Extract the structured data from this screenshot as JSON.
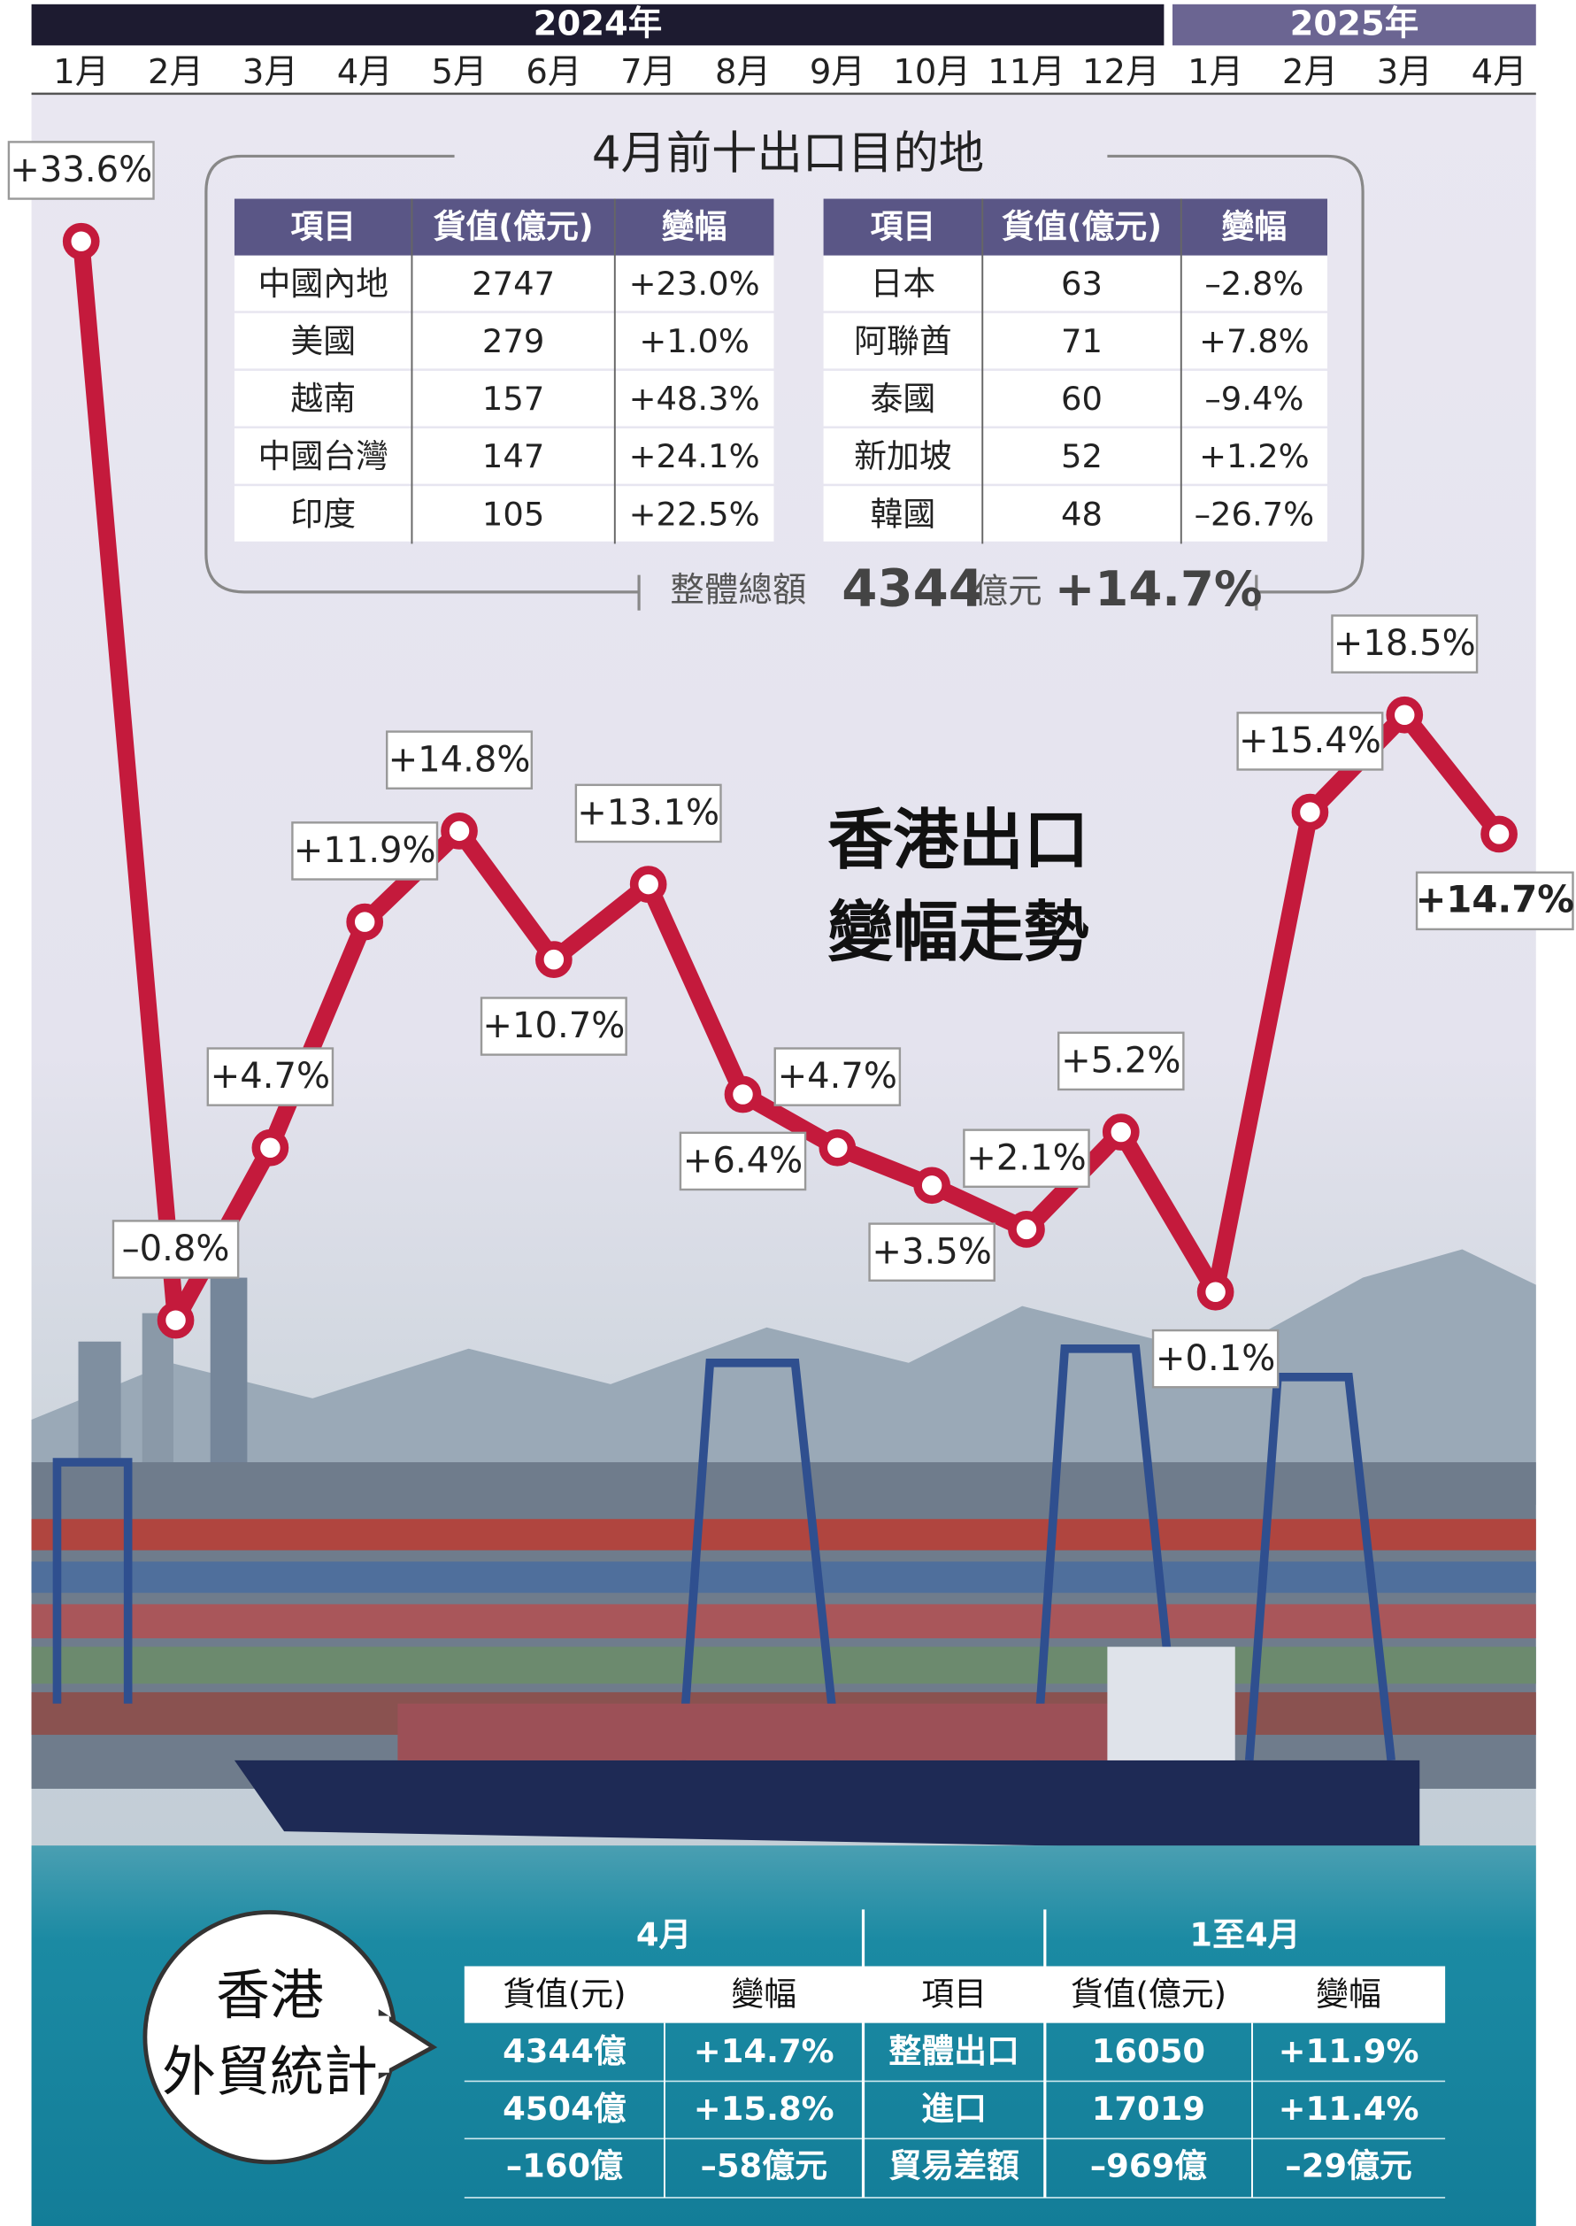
{
  "chart_data": {
    "type": "line",
    "title": [
      "香港出口",
      "變幅走勢"
    ],
    "year_labels": [
      "2024年",
      "2025年"
    ],
    "categories": [
      "1月",
      "2月",
      "3月",
      "4月",
      "5月",
      "6月",
      "7月",
      "8月",
      "9月",
      "10月",
      "11月",
      "12月",
      "1月",
      "2月",
      "3月",
      "4月"
    ],
    "values": [
      33.6,
      -0.8,
      4.7,
      11.9,
      14.8,
      10.7,
      13.1,
      6.4,
      4.7,
      3.5,
      2.1,
      5.2,
      0.1,
      15.4,
      18.5,
      14.7
    ],
    "value_labels": [
      "+33.6%",
      "–0.8%",
      "+4.7%",
      "+11.9%",
      "+14.8%",
      "+10.7%",
      "+13.1%",
      "+6.4%",
      "+4.7%",
      "+3.5%",
      "+2.1%",
      "+5.2%",
      "+0.1%",
      "+15.4%",
      "+18.5%",
      "+14.7%"
    ],
    "color": "#c41a3c"
  },
  "destinations": {
    "title": "4月前十出口目的地",
    "columns": [
      "項目",
      "貨值(億元)",
      "變幅"
    ],
    "rows": [
      [
        "中國內地",
        "2747",
        "+23.0%"
      ],
      [
        "美國",
        "279",
        "+1.0%"
      ],
      [
        "越南",
        "157",
        "+48.3%"
      ],
      [
        "中國台灣",
        "147",
        "+24.1%"
      ],
      [
        "印度",
        "105",
        "+22.5%"
      ],
      [
        "日本",
        "63",
        "–2.8%"
      ],
      [
        "阿聯酋",
        "71",
        "+7.8%"
      ],
      [
        "泰國",
        "60",
        "–9.4%"
      ],
      [
        "新加坡",
        "52",
        "+1.2%"
      ],
      [
        "韓國",
        "48",
        "–26.7%"
      ]
    ],
    "total": {
      "label": "整體總額",
      "value": "4344",
      "unit": "億元",
      "change": "+14.7%"
    }
  },
  "trade": {
    "title": [
      "香港",
      "外貿統計"
    ],
    "groups": [
      "4月",
      "1至4月"
    ],
    "columns": [
      "貨值(元)",
      "變幅",
      "項目",
      "貨值(億元)",
      "變幅"
    ],
    "rows": [
      [
        "4344億",
        "+14.7%",
        "整體出口",
        "16050",
        "+11.9%"
      ],
      [
        "4504億",
        "+15.8%",
        "進口",
        "17019",
        "+11.4%"
      ],
      [
        "–160億",
        "–58億元",
        "貿易差額",
        "–969億",
        "–29億元"
      ]
    ]
  }
}
